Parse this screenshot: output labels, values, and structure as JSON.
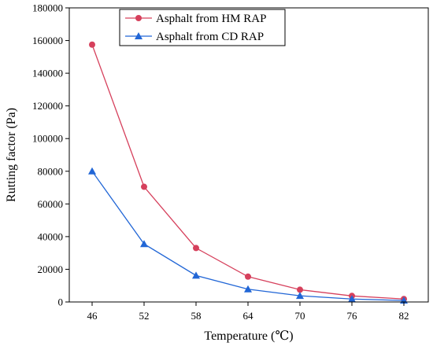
{
  "chart_data": {
    "type": "line",
    "x": [
      46,
      52,
      58,
      64,
      70,
      76,
      82
    ],
    "xlabel": "Temperature (℃)",
    "ylabel": "Rutting factor (Pa)",
    "ylim": [
      0,
      180000
    ],
    "yticks": [
      0,
      20000,
      40000,
      60000,
      80000,
      100000,
      120000,
      140000,
      160000,
      180000
    ],
    "grid": false,
    "legend_position": "top-center",
    "series": [
      {
        "name": "Asphalt from HM RAP",
        "values": [
          157500,
          70500,
          33000,
          15500,
          7500,
          3700,
          1800
        ],
        "color": "#d6405c",
        "marker": "circle"
      },
      {
        "name": "Asphalt from CD RAP",
        "values": [
          80000,
          35500,
          16200,
          7800,
          3800,
          1800,
          900
        ],
        "color": "#2166d6",
        "marker": "triangle"
      }
    ]
  }
}
